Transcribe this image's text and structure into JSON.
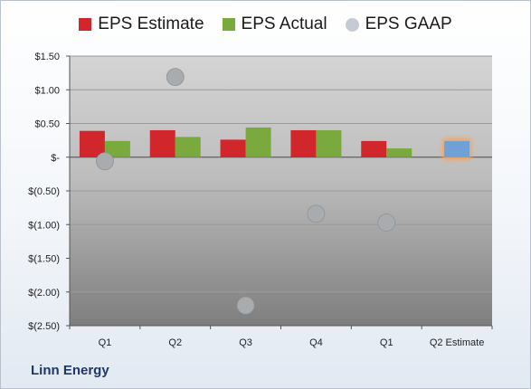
{
  "chart_data": {
    "type": "bar",
    "categories": [
      "Q1",
      "Q2",
      "Q3",
      "Q4",
      "Q1",
      "Q2 Estimate"
    ],
    "series": [
      {
        "name": "EPS Estimate",
        "values": [
          0.39,
          0.4,
          0.26,
          0.4,
          0.24,
          null
        ],
        "color": "#d0262c"
      },
      {
        "name": "EPS Actual",
        "values": [
          0.24,
          0.3,
          0.44,
          0.4,
          0.13,
          null
        ],
        "color": "#7aaa3e"
      },
      {
        "name": "EPS GAAP",
        "values": [
          -0.06,
          1.19,
          -2.2,
          -0.84,
          -0.97,
          null
        ],
        "color": "#a9acaf",
        "marker": "circle"
      }
    ],
    "highlight": {
      "category_index": 5,
      "value": 0.24,
      "fill": "#6fa1d6",
      "glow": "#f6a35c"
    },
    "ylim": [
      -2.5,
      1.5
    ],
    "yticks": [
      1.5,
      1.0,
      0.5,
      0,
      -0.5,
      -1.0,
      -1.5,
      -2.0,
      -2.5
    ],
    "ytick_labels": [
      "$1.50",
      "$1.00",
      "$0.50",
      "$-",
      "$(0.50)",
      "$(1.00)",
      "$(1.50)",
      "$(2.00)",
      "$(2.50)"
    ],
    "grid": true,
    "legend_position": "top"
  },
  "footer": {
    "company": "Linn Energy"
  }
}
